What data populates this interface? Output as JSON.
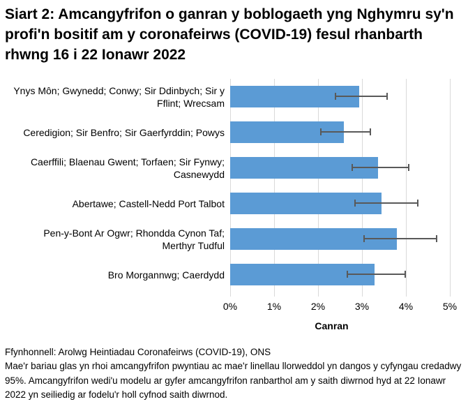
{
  "title": "Siart 2: Amcangyfrifon o ganran y boblogaeth yng Nghymru sy'n profi'n bositif am y coronafeirws (COVID-19) fesul rhanbarth rhwng 16 i 22 Ionawr 2022",
  "chart_data": {
    "type": "bar",
    "orientation": "horizontal",
    "categories": [
      "Ynys Môn; Gwynedd; Conwy; Sir Ddinbych; Sir y Fflint; Wrecsam",
      "Ceredigion; Sir Benfro; Sir Gaerfyrddin; Powys",
      "Caerffili; Blaenau Gwent; Torfaen; Sir Fynwy; Casnewydd",
      "Abertawe; Castell-Nedd Port Talbot",
      "Pen-y-Bont Ar Ogwr; Rhondda Cynon Taf; Merthyr Tudful",
      "Bro Morgannwg; Caerdydd"
    ],
    "values": [
      2.94,
      2.58,
      3.37,
      3.44,
      3.79,
      3.28
    ],
    "ci_lower": [
      2.4,
      2.06,
      2.77,
      2.84,
      3.05,
      2.67
    ],
    "ci_upper": [
      3.57,
      3.19,
      4.07,
      4.27,
      4.7,
      3.99
    ],
    "xlabel": "Canran",
    "xlim": [
      0,
      5
    ],
    "x_ticks": [
      "0%",
      "1%",
      "2%",
      "3%",
      "4%",
      "5%"
    ],
    "grid": "vertical-only",
    "legend": "none",
    "bar_color": "#5B9BD5",
    "error_bar_color": "#595959",
    "gridline_color": "#D9D9D9"
  },
  "footer": {
    "source": "Ffynhonnell: Arolwg Heintiadau Coronafeirws (COVID-19), ONS",
    "note": "Mae'r bariau glas yn rhoi amcangyfrifon pwyntiau ac mae'r linellau llorweddol yn dangos y cyfyngau credadwy 95%. Amcangyfrifon wedi'u modelu ar gyfer amcangyfrifon ranbarthol am y saith diwrnod hyd at 22 Ionawr 2022 yn seiliedig ar fodelu'r holl cyfnod saith diwrnod."
  }
}
